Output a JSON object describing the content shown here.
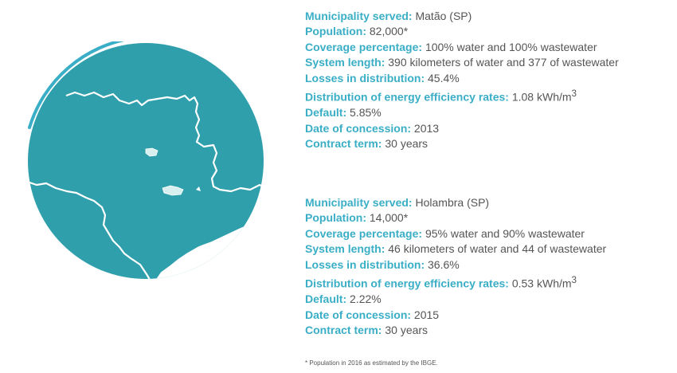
{
  "map": {
    "circle_color": "#3aaec6",
    "fill_color": "#2f9fac",
    "border_color": "#ffffff"
  },
  "municipalities": [
    {
      "municipality": {
        "label": "Municipality served:",
        "value": "Matão (SP)"
      },
      "population": {
        "label": "Population:",
        "value": "82,000*"
      },
      "coverage": {
        "label": "Coverage percentage:",
        "value": "100% water and 100% wastewater"
      },
      "system_length": {
        "label": "System length:",
        "value": "390 kilometers of water and 377 of wastewater"
      },
      "losses": {
        "label": "Losses in distribution:",
        "value": "45.4%"
      },
      "energy": {
        "label": "Distribution of energy efficiency rates:",
        "value": "1.08 kWh/m",
        "unit_sup": "3"
      },
      "default_rate": {
        "label": "Default:",
        "value": "5.85%"
      },
      "concession_date": {
        "label": "Date of concession:",
        "value": "2013"
      },
      "contract_term": {
        "label": "Contract term:",
        "value": "30 years"
      }
    },
    {
      "municipality": {
        "label": "Municipality served:",
        "value": "Holambra (SP)"
      },
      "population": {
        "label": "Population:",
        "value": "14,000*"
      },
      "coverage": {
        "label": "Coverage percentage:",
        "value": "95% water and 90% wastewater"
      },
      "system_length": {
        "label": "System length:",
        "value": "46 kilometers of water and 44 of wastewater"
      },
      "losses": {
        "label": "Losses in distribution:",
        "value": "36.6%"
      },
      "energy": {
        "label": "Distribution of energy efficiency rates:",
        "value": "0.53 kWh/m",
        "unit_sup": "3"
      },
      "default_rate": {
        "label": "Default:",
        "value": "2.22%"
      },
      "concession_date": {
        "label": "Date of concession:",
        "value": "2015"
      },
      "contract_term": {
        "label": "Contract term:",
        "value": "30 years"
      }
    }
  ],
  "footnote": "* Population in 2016 as estimated by the IBGE."
}
